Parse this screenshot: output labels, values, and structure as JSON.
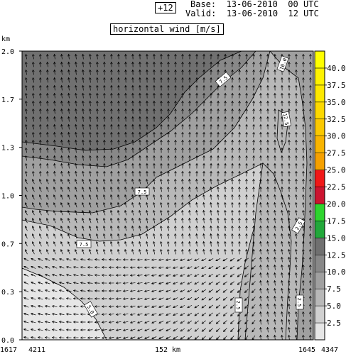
{
  "header": {
    "forecast_step": "+12",
    "base_label": "Base:",
    "base_value": "13-06-2010  00 UTC",
    "valid_label": "Valid:",
    "valid_value": "13-06-2010  12 UTC",
    "title": "horizontal wind [m/s]"
  },
  "chart_data": {
    "type": "heatmap",
    "title": "horizontal wind [m/s]",
    "ylabel": "km",
    "ylim": [
      0.0,
      2.0
    ],
    "y_ticks": [
      {
        "label": "2.0",
        "value": 2.0
      },
      {
        "label": "1.7",
        "value": 1.667
      },
      {
        "label": "1.3",
        "value": 1.333
      },
      {
        "label": "1.0",
        "value": 1.0
      },
      {
        "label": "0.7",
        "value": 0.667
      },
      {
        "label": "0.3",
        "value": 0.333
      },
      {
        "label": "0.0",
        "value": 0.0
      }
    ],
    "x_labels": {
      "left_outer": "1617",
      "left_inner": "4211",
      "center": "152 km",
      "right_inner": "1645",
      "right_outer": "4347"
    },
    "colorbar": {
      "levels": [
        {
          "label": "2.5",
          "color": "#e6e6e6"
        },
        {
          "label": "5.0",
          "color": "#d0d0d0"
        },
        {
          "label": "7.5",
          "color": "#b8b8b8"
        },
        {
          "label": "10.0",
          "color": "#a0a0a0"
        },
        {
          "label": "12.5",
          "color": "#888888"
        },
        {
          "label": "15.0",
          "color": "#707070"
        },
        {
          "label": "17.5",
          "color": "#22a83a"
        },
        {
          "label": "20.0",
          "color": "#2ed42e"
        },
        {
          "label": "22.5",
          "color": "#cc1430"
        },
        {
          "label": "25.0",
          "color": "#f01818"
        },
        {
          "label": "27.5",
          "color": "#f5a000"
        },
        {
          "label": "30.0",
          "color": "#f8b400"
        },
        {
          "label": "32.5",
          "color": "#fac800"
        },
        {
          "label": "35.0",
          "color": "#fcd800"
        },
        {
          "label": "37.5",
          "color": "#fde800"
        },
        {
          "label": "40.0",
          "color": "#fef200"
        },
        {
          "label": "",
          "color": "#ffff00"
        }
      ]
    },
    "contour_labels": [
      "7.5",
      "10.0",
      "12.5",
      "7.5",
      "5.0",
      "2.5",
      "2.5",
      "2.5",
      "7.5"
    ]
  }
}
